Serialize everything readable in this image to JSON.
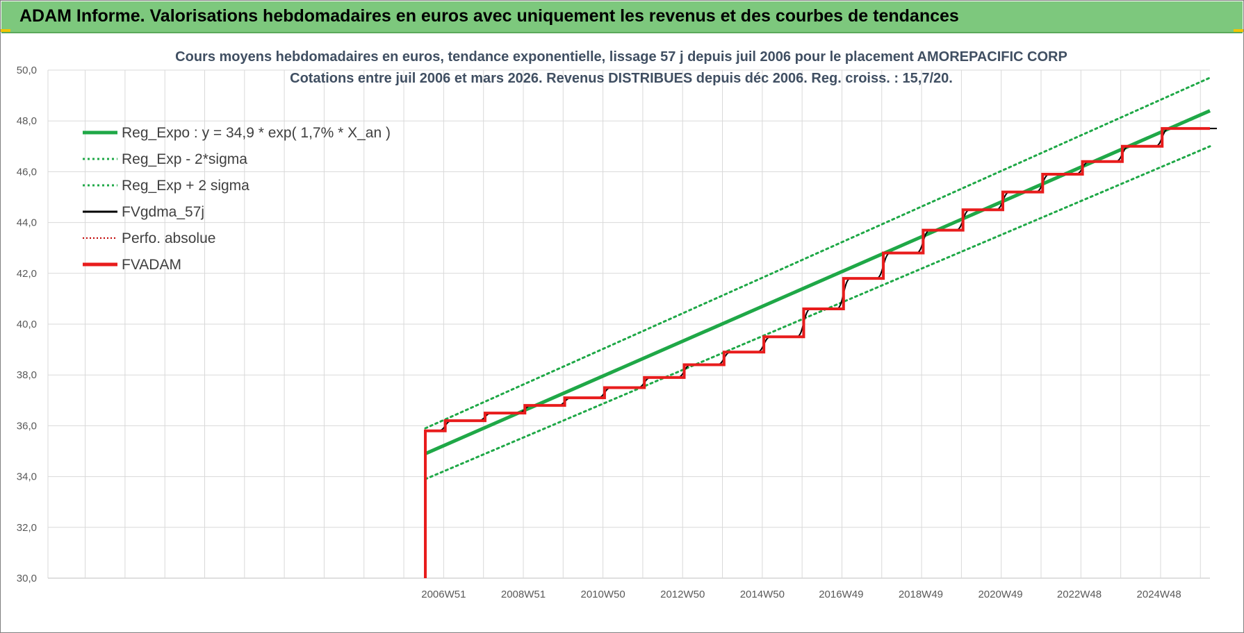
{
  "banner": {
    "title": "ADAM Informe. Valorisations hebdomadaires en euros avec uniquement les revenus et des courbes de tendances"
  },
  "colors": {
    "banner": "#7dc87d",
    "reg_expo": "#1fa847",
    "fvgdma": "#000000",
    "fvadam": "#e81c1c",
    "perfo": "#c00000",
    "grid": "#d9d9d9"
  },
  "chart_data": {
    "type": "line",
    "title_line1": "Cours moyens hebdomadaires en euros, tendance exponentielle, lissage 57 j depuis juil 2006 pour le placement AMOREPACIFIC CORP",
    "title_line2": "Cotations entre juil 2006 et mars 2026. Revenus DISTRIBUES depuis déc 2006. Reg. croiss. : 15,7/20.",
    "ylim": [
      30,
      50
    ],
    "y_ticks": [
      "30,0",
      "32,0",
      "34,0",
      "36,0",
      "38,0",
      "40,0",
      "42,0",
      "44,0",
      "46,0",
      "48,0",
      "50,0"
    ],
    "x_tick_labels": [
      "2006W51",
      "2008W51",
      "2010W50",
      "2012W50",
      "2014W50",
      "2016W49",
      "2018W49",
      "2020W49",
      "2022W48",
      "2024W48"
    ],
    "x_tick_years": [
      2006.96,
      2008.96,
      2010.96,
      2012.96,
      2014.96,
      2016.94,
      2018.94,
      2020.94,
      2022.92,
      2024.92
    ],
    "x_start_year": 2006.5,
    "x_end_year": 2026.2,
    "grid": true,
    "legend_position": "top-left",
    "series": [
      {
        "name": "Reg_Expo : y = 34,9 * exp( 1,7% *  X_an )",
        "style": "solid-thick",
        "color": "#1fa847",
        "x": [
          2006.5,
          2026.2
        ],
        "y": [
          34.9,
          48.4
        ]
      },
      {
        "name": "Reg_Exp - 2*sigma",
        "style": "dotted",
        "color": "#1fa847",
        "x": [
          2006.5,
          2026.2
        ],
        "y": [
          33.9,
          47.0
        ]
      },
      {
        "name": "Reg_Exp + 2 sigma",
        "style": "dotted",
        "color": "#1fa847",
        "x": [
          2006.5,
          2026.2
        ],
        "y": [
          35.9,
          49.7
        ]
      },
      {
        "name": "FVgdma_57j",
        "style": "solid-thin",
        "color": "#000000",
        "steps": "same-as-FVADAM-smoothed"
      },
      {
        "name": "Perfo. absolue",
        "style": "dotted",
        "color": "#c00000"
      },
      {
        "name": "FVADAM",
        "style": "step",
        "color": "#e81c1c",
        "start": [
          2006.5,
          30.0
        ],
        "step_x": [
          2006.5,
          2007.0,
          2008.0,
          2009.0,
          2010.0,
          2011.0,
          2012.0,
          2013.0,
          2014.0,
          2015.0,
          2016.0,
          2017.0,
          2018.0,
          2019.0,
          2020.0,
          2021.0,
          2022.0,
          2023.0,
          2024.0,
          2025.0,
          2026.2
        ],
        "step_y": [
          35.8,
          36.2,
          36.5,
          36.8,
          37.1,
          37.5,
          37.9,
          38.4,
          38.9,
          39.5,
          40.6,
          41.8,
          42.8,
          43.7,
          44.5,
          45.2,
          45.9,
          46.4,
          47.0,
          47.7,
          47.7
        ]
      }
    ]
  }
}
